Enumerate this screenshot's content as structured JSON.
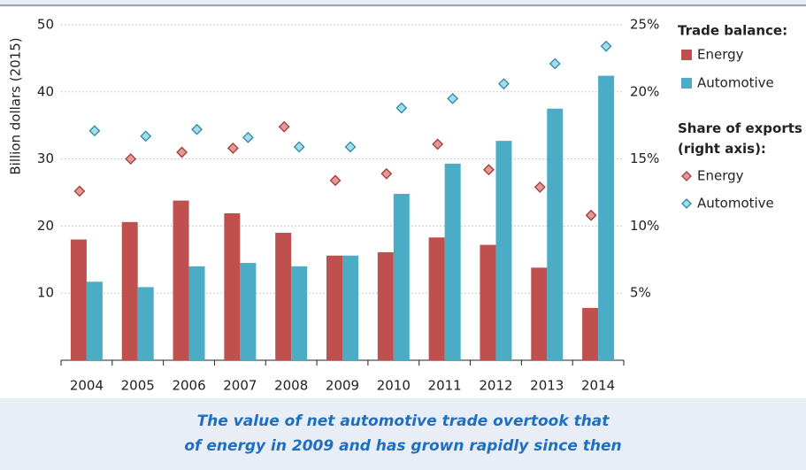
{
  "chart_data": {
    "type": "bar",
    "y_label": "Billion dollars (2015)",
    "categories": [
      "2004",
      "2005",
      "2006",
      "2007",
      "2008",
      "2009",
      "2010",
      "2011",
      "2012",
      "2013",
      "2014"
    ],
    "series": [
      {
        "name": "Energy",
        "type": "bar",
        "color": "#c0504d",
        "values": [
          18,
          20.6,
          23.8,
          21.9,
          19,
          15.6,
          16.1,
          18.3,
          17.2,
          13.8,
          7.8
        ]
      },
      {
        "name": "Automotive",
        "type": "bar",
        "color": "#4bacc6",
        "values": [
          11.7,
          10.9,
          14,
          14.5,
          14,
          15.6,
          24.8,
          29.3,
          32.7,
          37.5,
          42.4
        ]
      },
      {
        "name": "Energy",
        "type": "scatter",
        "axis": "y2",
        "color": "#e39a97",
        "values": [
          12.6,
          15.0,
          15.5,
          15.8,
          17.4,
          13.4,
          13.9,
          16.1,
          14.2,
          12.9,
          10.8
        ]
      },
      {
        "name": "Automotive",
        "type": "scatter",
        "axis": "y2",
        "color": "#a6dbe9",
        "values": [
          17.1,
          16.7,
          17.2,
          16.6,
          15.9,
          15.9,
          18.8,
          19.5,
          20.6,
          22.1,
          23.4
        ]
      }
    ],
    "legend_titles": [
      "Trade balance:",
      "Share of exports (right axis):"
    ],
    "ylim": [
      0,
      50
    ],
    "yticks": [
      10,
      20,
      30,
      40,
      50
    ],
    "y2lim": [
      0,
      25
    ],
    "y2ticks": [
      {
        "value": 5,
        "label": "5%"
      },
      {
        "value": 10,
        "label": "10%"
      },
      {
        "value": 15,
        "label": "15%"
      },
      {
        "value": 20,
        "label": "20%"
      },
      {
        "value": 25,
        "label": "25%"
      }
    ],
    "grid": true,
    "caption": [
      "The value of net automotive trade overtook that",
      "of energy in 2009 and has grown rapidly since then"
    ]
  }
}
